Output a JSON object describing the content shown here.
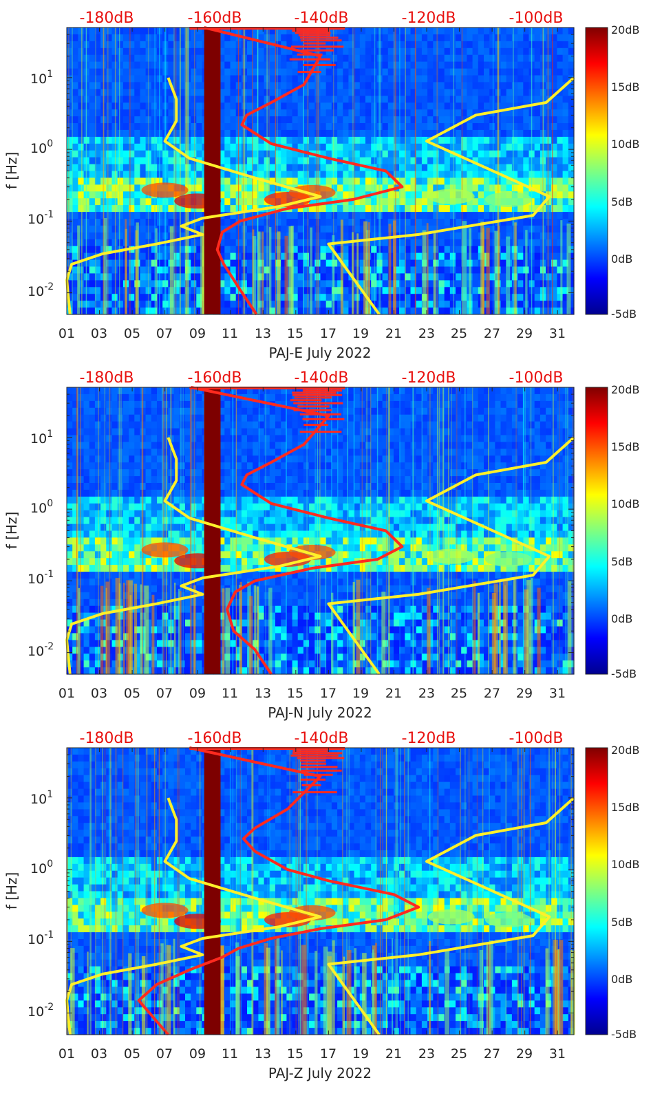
{
  "chart_data": [
    {
      "type": "heatmap",
      "xlabel": "PAJ-E July 2022",
      "ylabel": "f [Hz]",
      "x_ticks": [
        "01",
        "03",
        "05",
        "07",
        "09",
        "11",
        "13",
        "15",
        "17",
        "19",
        "21",
        "23",
        "25",
        "27",
        "29",
        "31"
      ],
      "x_range_days": [
        1,
        32
      ],
      "y_scale": "log",
      "y_ticks": [
        "10-2",
        "10-1",
        "100",
        "101"
      ],
      "y_range_hz": [
        0.005,
        50
      ],
      "top_axis_ticks": [
        "-180dB",
        "-160dB",
        "-140dB",
        "-120dB",
        "-100dB"
      ],
      "colorbar": {
        "labels": [
          "20dB",
          "15dB",
          "10dB",
          "5dB",
          "0dB",
          "-5dB"
        ],
        "range_db": [
          -5,
          20
        ]
      },
      "series": [
        {
          "color": "#ff2a1f",
          "points": [
            [
              12.6,
              0.005
            ],
            [
              11.6,
              0.011
            ],
            [
              10.6,
              0.025
            ],
            [
              10.2,
              0.04
            ],
            [
              10.5,
              0.07
            ],
            [
              11.6,
              0.1
            ],
            [
              14.5,
              0.15
            ],
            [
              18.5,
              0.2
            ],
            [
              21.5,
              0.3
            ],
            [
              20.5,
              0.5
            ],
            [
              17,
              0.75
            ],
            [
              13.5,
              1.2
            ],
            [
              11.7,
              2.2
            ],
            [
              12.0,
              3.0
            ],
            [
              13.5,
              4.5
            ],
            [
              15.5,
              8
            ],
            [
              16.5,
              20
            ],
            [
              9.4,
              50
            ]
          ]
        },
        {
          "color": "#fff02a",
          "points": [
            [
              1.2,
              0.005
            ],
            [
              1.0,
              0.015
            ],
            [
              1.3,
              0.025
            ],
            [
              3.2,
              0.035
            ],
            [
              6.5,
              0.048
            ],
            [
              9.3,
              0.065
            ],
            [
              8.0,
              0.085
            ],
            [
              9.3,
              0.11
            ],
            [
              14,
              0.16
            ],
            [
              16.5,
              0.22
            ],
            [
              12.5,
              0.4
            ],
            [
              8.5,
              0.75
            ],
            [
              7.0,
              1.3
            ],
            [
              7.7,
              2.5
            ],
            [
              7.7,
              5.0
            ],
            [
              7.2,
              10
            ]
          ]
        },
        {
          "color": "#fff02a",
          "points": [
            [
              20.1,
              0.005
            ],
            [
              17,
              0.048
            ],
            [
              22.5,
              0.065
            ],
            [
              29.5,
              0.12
            ],
            [
              30.5,
              0.22
            ],
            [
              27.5,
              0.45
            ],
            [
              23,
              1.3
            ],
            [
              26,
              3.0
            ],
            [
              30.3,
              4.5
            ],
            [
              32,
              10
            ]
          ]
        }
      ]
    },
    {
      "type": "heatmap",
      "xlabel": "PAJ-N July 2022",
      "ylabel": "f [Hz]",
      "x_ticks": [
        "01",
        "03",
        "05",
        "07",
        "09",
        "11",
        "13",
        "15",
        "17",
        "19",
        "21",
        "23",
        "25",
        "27",
        "29",
        "31"
      ],
      "x_range_days": [
        1,
        32
      ],
      "y_scale": "log",
      "y_ticks": [
        "10-2",
        "10-1",
        "100",
        "101"
      ],
      "y_range_hz": [
        0.005,
        50
      ],
      "top_axis_ticks": [
        "-180dB",
        "-160dB",
        "-140dB",
        "-120dB",
        "-100dB"
      ],
      "colorbar": {
        "labels": [
          "20dB",
          "15dB",
          "10dB",
          "5dB",
          "0dB",
          "-5dB"
        ],
        "range_db": [
          -5,
          20
        ]
      },
      "series": [
        {
          "color": "#ff2a1f",
          "points": [
            [
              13.5,
              0.005
            ],
            [
              12.5,
              0.011
            ],
            [
              11.2,
              0.02
            ],
            [
              10.8,
              0.04
            ],
            [
              11.3,
              0.07
            ],
            [
              12.5,
              0.1
            ],
            [
              16,
              0.15
            ],
            [
              20,
              0.2
            ],
            [
              21.5,
              0.3
            ],
            [
              20.5,
              0.5
            ],
            [
              17,
              0.75
            ],
            [
              13.5,
              1.2
            ],
            [
              11.7,
              2.2
            ],
            [
              12.0,
              3.0
            ],
            [
              13.5,
              4.5
            ],
            [
              15.5,
              8
            ],
            [
              17,
              20
            ],
            [
              8.6,
              50
            ]
          ]
        },
        {
          "color": "#fff02a",
          "points": [
            [
              1.2,
              0.005
            ],
            [
              1.0,
              0.015
            ],
            [
              1.3,
              0.025
            ],
            [
              3.2,
              0.035
            ],
            [
              6.5,
              0.048
            ],
            [
              9.3,
              0.065
            ],
            [
              8.0,
              0.085
            ],
            [
              9.3,
              0.11
            ],
            [
              14,
              0.16
            ],
            [
              16.5,
              0.22
            ],
            [
              12.5,
              0.4
            ],
            [
              8.5,
              0.75
            ],
            [
              7.0,
              1.3
            ],
            [
              7.7,
              2.5
            ],
            [
              7.7,
              5.0
            ],
            [
              7.2,
              10
            ]
          ]
        },
        {
          "color": "#fff02a",
          "points": [
            [
              20.1,
              0.005
            ],
            [
              17,
              0.048
            ],
            [
              22.5,
              0.065
            ],
            [
              29.5,
              0.12
            ],
            [
              30.5,
              0.22
            ],
            [
              27.5,
              0.45
            ],
            [
              23,
              1.3
            ],
            [
              26,
              3.0
            ],
            [
              30.3,
              4.5
            ],
            [
              32,
              10
            ]
          ]
        }
      ]
    },
    {
      "type": "heatmap",
      "xlabel": "PAJ-Z July 2022",
      "ylabel": "f [Hz]",
      "x_ticks": [
        "01",
        "03",
        "05",
        "07",
        "09",
        "11",
        "13",
        "15",
        "17",
        "19",
        "21",
        "23",
        "25",
        "27",
        "29",
        "31"
      ],
      "x_range_days": [
        1,
        32
      ],
      "y_scale": "log",
      "y_ticks": [
        "10-2",
        "10-1",
        "100",
        "101"
      ],
      "y_range_hz": [
        0.005,
        50
      ],
      "top_axis_ticks": [
        "-180dB",
        "-160dB",
        "-140dB",
        "-120dB",
        "-100dB"
      ],
      "colorbar": {
        "labels": [
          "20dB",
          "15dB",
          "10dB",
          "5dB",
          "0dB",
          "-5dB"
        ],
        "range_db": [
          -5,
          20
        ]
      },
      "series": [
        {
          "color": "#ff2a1f",
          "points": [
            [
              7.2,
              0.005
            ],
            [
              5.4,
              0.015
            ],
            [
              6.5,
              0.025
            ],
            [
              8.5,
              0.04
            ],
            [
              10.5,
              0.06
            ],
            [
              11.5,
              0.08
            ],
            [
              13.5,
              0.11
            ],
            [
              16.5,
              0.15
            ],
            [
              20.5,
              0.2
            ],
            [
              22.5,
              0.3
            ],
            [
              21,
              0.45
            ],
            [
              17,
              0.7
            ],
            [
              14.5,
              1.0
            ],
            [
              12.5,
              1.8
            ],
            [
              11.8,
              2.7
            ],
            [
              12.5,
              3.8
            ],
            [
              14.5,
              7
            ],
            [
              16.5,
              20
            ],
            [
              8.5,
              50
            ]
          ]
        },
        {
          "color": "#fff02a",
          "points": [
            [
              1.2,
              0.005
            ],
            [
              1.0,
              0.015
            ],
            [
              1.3,
              0.025
            ],
            [
              3.2,
              0.035
            ],
            [
              6.5,
              0.048
            ],
            [
              9.3,
              0.065
            ],
            [
              8.0,
              0.085
            ],
            [
              9.3,
              0.11
            ],
            [
              14,
              0.16
            ],
            [
              16.5,
              0.22
            ],
            [
              12.5,
              0.4
            ],
            [
              8.5,
              0.75
            ],
            [
              7.0,
              1.3
            ],
            [
              7.7,
              2.5
            ],
            [
              7.7,
              5.0
            ],
            [
              7.2,
              10
            ]
          ]
        },
        {
          "color": "#fff02a",
          "points": [
            [
              20.1,
              0.005
            ],
            [
              17,
              0.048
            ],
            [
              22.5,
              0.065
            ],
            [
              29.5,
              0.12
            ],
            [
              30.5,
              0.22
            ],
            [
              27.5,
              0.45
            ],
            [
              23,
              1.3
            ],
            [
              26,
              3.0
            ],
            [
              30.3,
              4.5
            ],
            [
              32,
              10
            ]
          ]
        }
      ]
    }
  ]
}
